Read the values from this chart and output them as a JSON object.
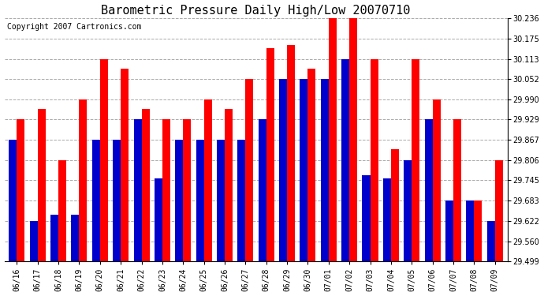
{
  "title": "Barometric Pressure Daily High/Low 20070710",
  "copyright": "Copyright 2007 Cartronics.com",
  "dates": [
    "06/16",
    "06/17",
    "06/18",
    "06/19",
    "06/20",
    "06/21",
    "06/22",
    "06/23",
    "06/24",
    "06/25",
    "06/26",
    "06/27",
    "06/28",
    "06/29",
    "06/30",
    "07/01",
    "07/02",
    "07/03",
    "07/04",
    "07/05",
    "07/06",
    "07/07",
    "07/08",
    "07/09"
  ],
  "highs": [
    29.929,
    29.96,
    29.806,
    29.99,
    30.113,
    30.083,
    29.96,
    29.929,
    29.929,
    29.99,
    29.96,
    30.052,
    30.145,
    30.155,
    30.083,
    30.236,
    30.236,
    30.113,
    29.84,
    30.113,
    29.99,
    29.929,
    29.683,
    29.806
  ],
  "lows": [
    29.867,
    29.622,
    29.64,
    29.64,
    29.867,
    29.867,
    29.929,
    29.75,
    29.867,
    29.867,
    29.867,
    29.867,
    29.929,
    30.052,
    30.052,
    30.052,
    30.113,
    29.76,
    29.75,
    29.806,
    29.929,
    29.683,
    29.683,
    29.622
  ],
  "high_color": "#ff0000",
  "low_color": "#0000cc",
  "bg_color": "#ffffff",
  "plot_bg_color": "#ffffff",
  "grid_color": "#aaaaaa",
  "ymin": 29.499,
  "ymax": 30.236,
  "yticks": [
    29.499,
    29.56,
    29.622,
    29.683,
    29.745,
    29.806,
    29.867,
    29.929,
    29.99,
    30.052,
    30.113,
    30.175,
    30.236
  ],
  "title_fontsize": 11,
  "copyright_fontsize": 7
}
